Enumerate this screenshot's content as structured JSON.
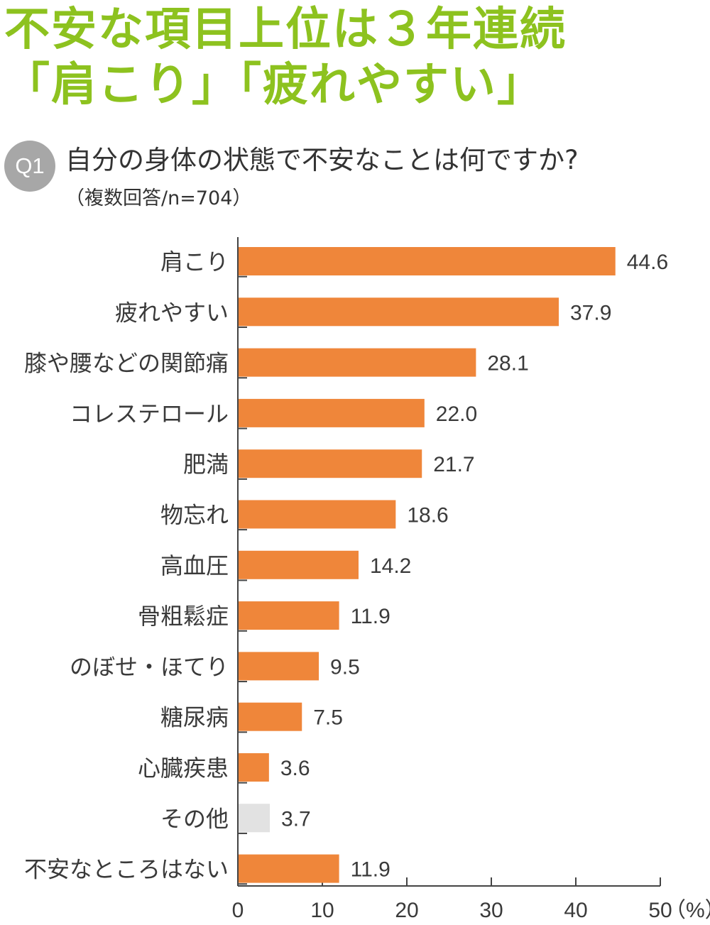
{
  "headline": {
    "line1": "不安な項目上位は３年連続",
    "line2": "「肩こり」「疲れやすい」"
  },
  "question": {
    "badge": "Q1",
    "text": "自分の身体の状態で不安なことは何ですか?",
    "note": "（複数回答/n=704）"
  },
  "colors": {
    "headline": "#8dc21f",
    "badge": "#a7a7a7",
    "bar": "#ef863a",
    "bar_other": "#e2e2e2",
    "axis": "#444444"
  },
  "chart_data": {
    "type": "bar",
    "orientation": "horizontal",
    "title": "",
    "xlabel": "",
    "ylabel": "",
    "unit": "（%）",
    "xlim": [
      0,
      50
    ],
    "xticks": [
      0,
      10,
      20,
      30,
      40,
      50
    ],
    "grid": false,
    "categories": [
      "肩こり",
      "疲れやすい",
      "膝や腰などの関節痛",
      "コレステロール",
      "肥満",
      "物忘れ",
      "高血圧",
      "骨粗鬆症",
      "のぼせ・ほてり",
      "糖尿病",
      "心臓疾患",
      "その他",
      "不安なところはない"
    ],
    "values": [
      44.6,
      37.9,
      28.1,
      22.0,
      21.7,
      18.6,
      14.2,
      11.9,
      9.5,
      7.5,
      3.6,
      3.7,
      11.9
    ],
    "value_labels": [
      "44.6",
      "37.9",
      "28.1",
      "22.0",
      "21.7",
      "18.6",
      "14.2",
      "11.9",
      "9.5",
      "7.5",
      "3.6",
      "3.7",
      "11.9"
    ],
    "bar_colors": [
      "#ef863a",
      "#ef863a",
      "#ef863a",
      "#ef863a",
      "#ef863a",
      "#ef863a",
      "#ef863a",
      "#ef863a",
      "#ef863a",
      "#ef863a",
      "#ef863a",
      "#e2e2e2",
      "#ef863a"
    ]
  }
}
